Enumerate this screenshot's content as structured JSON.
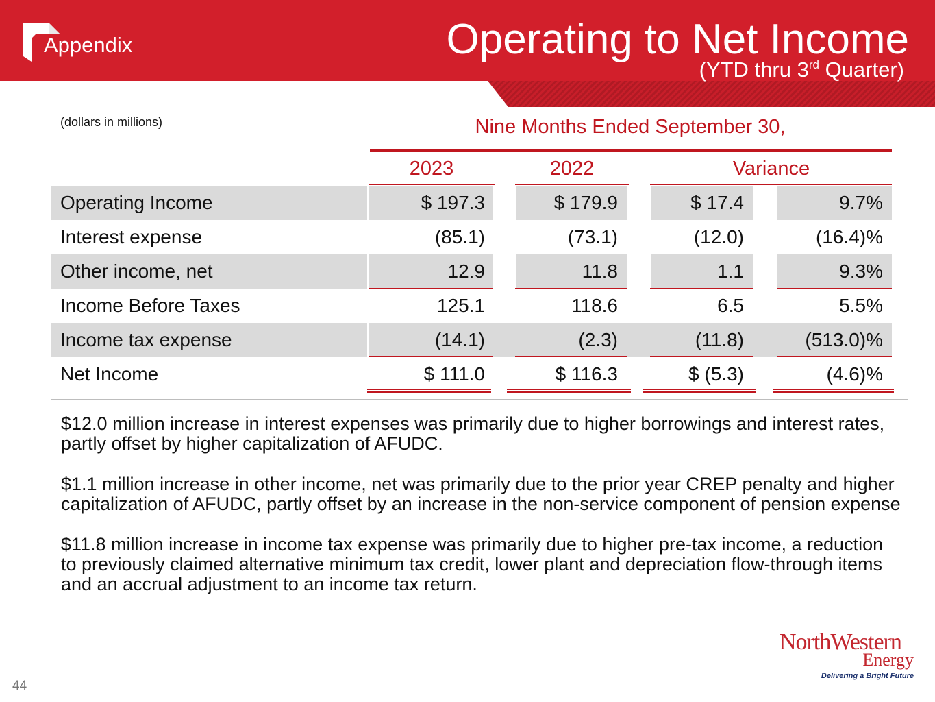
{
  "header": {
    "section": "Appendix",
    "title": "Operating to Net Income",
    "subtitle_prefix": "(YTD thru 3",
    "subtitle_sup": "rd",
    "subtitle_suffix": " Quarter)"
  },
  "table": {
    "units_note": "(dollars in millions)",
    "period_heading": "Nine Months Ended September 30,",
    "columns": [
      "2023",
      "2022",
      "Variance"
    ],
    "rows": [
      {
        "label": "Operating Income",
        "y2023": "$ 197.3",
        "y2022": "$ 179.9",
        "var_amt": "$ 17.4",
        "var_pct": "9.7%"
      },
      {
        "label": "Interest expense",
        "y2023": "(85.1)",
        "y2022": "(73.1)",
        "var_amt": "(12.0)",
        "var_pct": "(16.4)%"
      },
      {
        "label": "Other income, net",
        "y2023": "12.9",
        "y2022": "11.8",
        "var_amt": "1.1",
        "var_pct": "9.3%"
      },
      {
        "label": "Income Before Taxes",
        "y2023": "125.1",
        "y2022": "118.6",
        "var_amt": "6.5",
        "var_pct": "5.5%"
      },
      {
        "label": "Income tax expense",
        "y2023": "(14.1)",
        "y2022": "(2.3)",
        "var_amt": "(11.8)",
        "var_pct": "(513.0)%"
      },
      {
        "label": "Net Income",
        "y2023": "$ 111.0",
        "y2022": "$ 116.3",
        "var_amt": "$ (5.3)",
        "var_pct": "(4.6)%"
      }
    ]
  },
  "notes": [
    "$12.0 million increase in interest expenses was primarily due to higher borrowings and interest rates, partly offset by higher capitalization of AFUDC.",
    "$1.1 million increase in other income, net was primarily due to the prior year CREP penalty and higher capitalization of AFUDC, partly offset by an increase in the non-service component of pension expense",
    "$11.8 million increase in income tax expense was primarily due to higher pre-tax income, a reduction to previously claimed alternative minimum tax credit, lower plant and depreciation flow-through items and an accrual adjustment to an income tax return."
  ],
  "footer": {
    "page_number": "44",
    "logo_name": "NorthWestern",
    "logo_energy": "Energy",
    "logo_tagline": "Delivering a Bright Future"
  },
  "colors": {
    "brand_red": "#d21f2b",
    "accent_red": "#c0161f",
    "row_shade": "#dadada"
  }
}
